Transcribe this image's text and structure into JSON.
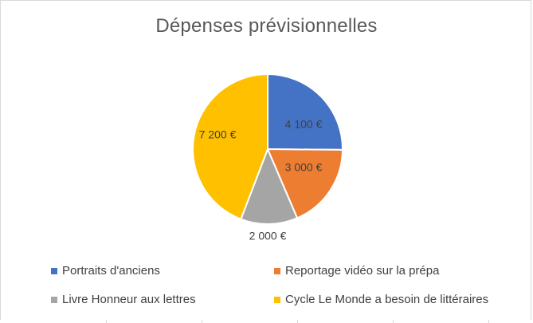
{
  "chart_data": {
    "type": "pie",
    "title": "Dépenses prévisionnelles",
    "categories": [
      "Portraits d'anciens",
      "Reportage vidéo sur la prépa",
      "Livre Honneur aux lettres",
      "Cycle Le Monde a besoin de littéraires"
    ],
    "values": [
      4100,
      3000,
      2000,
      7200
    ],
    "data_labels": [
      "4 100 €",
      "3 000 €",
      "2 000 €",
      "7 200 €"
    ],
    "colors": [
      "#4472C4",
      "#ED7D31",
      "#A5A5A5",
      "#FFC000"
    ],
    "legend_position": "bottom"
  }
}
